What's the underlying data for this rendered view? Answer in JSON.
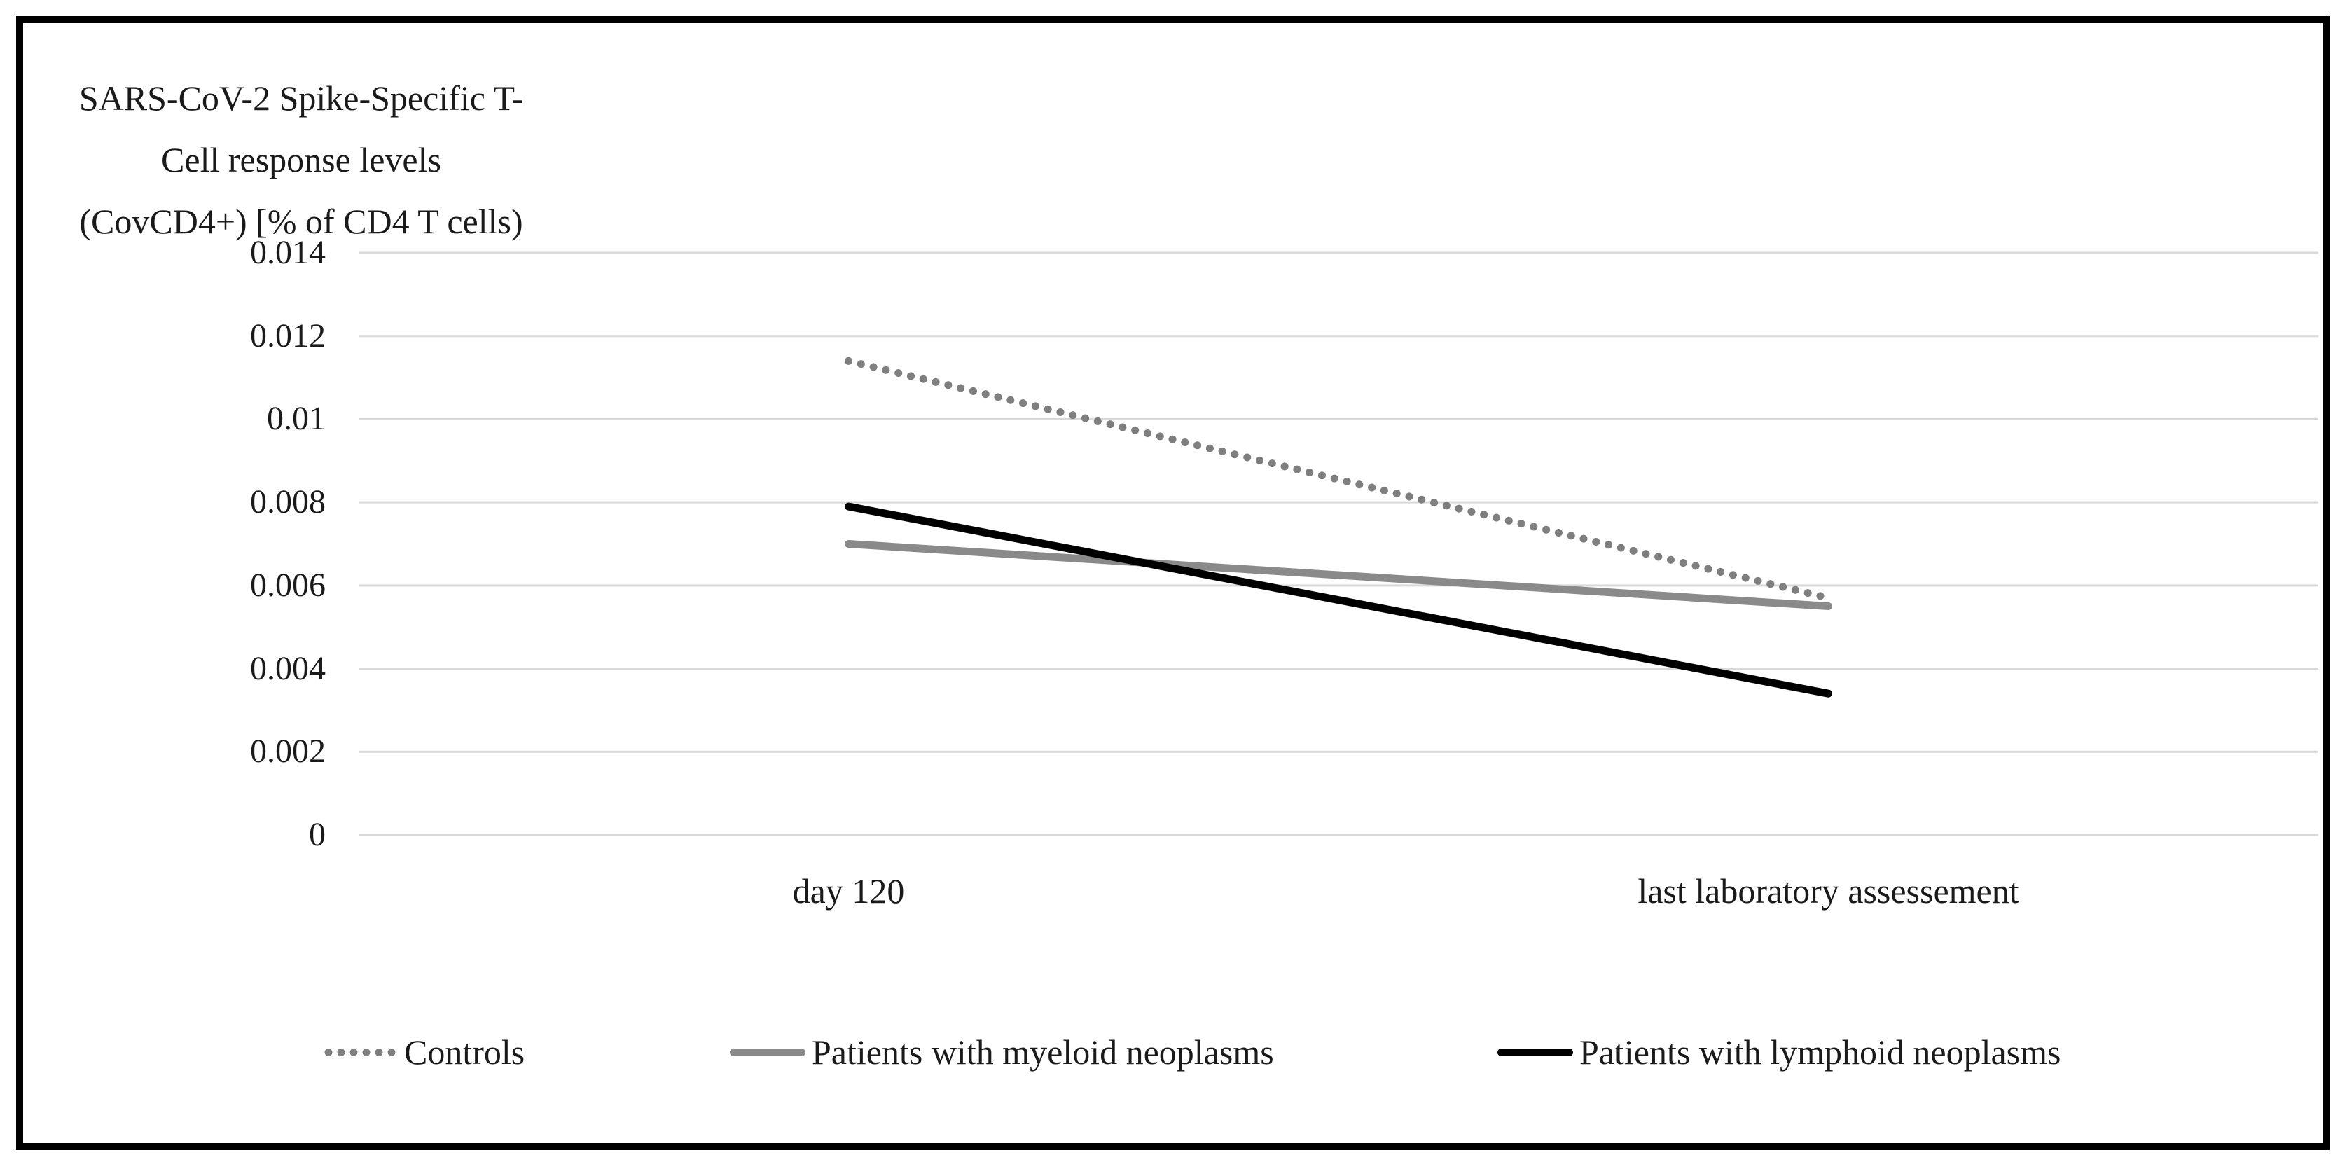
{
  "chart_data": {
    "type": "line",
    "categories": [
      "day 120",
      "last laboratory assessement"
    ],
    "series": [
      {
        "name": "Controls",
        "values": [
          0.0114,
          0.0057
        ],
        "color": "#7f7f7f",
        "line_style": "dotted"
      },
      {
        "name": "Patients with myeloid neoplasms",
        "values": [
          0.007,
          0.0055
        ],
        "color": "#8a8a8a",
        "line_style": "solid"
      },
      {
        "name": "Patients with lymphoid neoplasms",
        "values": [
          0.0079,
          0.0034
        ],
        "color": "#000000",
        "line_style": "solid"
      }
    ],
    "ylabel_lines": [
      "SARS-CoV-2 Spike-Specific T-",
      "Cell response levels",
      "(CovCD4+) [% of CD4 T cells)"
    ],
    "ylabel": "SARS-CoV-2 Spike-Specific T-Cell response levels (CovCD4+) [% of CD4 T cells)",
    "xlabel": "",
    "ylim": [
      0,
      0.014
    ],
    "ytick_step": 0.002,
    "ytick_labels": [
      "0.014",
      "0.012",
      "0.01",
      "0.008",
      "0.006",
      "0.004",
      "0.002",
      "0"
    ],
    "grid": true,
    "gridline_color": "#d9d9d9",
    "frame_color": "#000000",
    "legend_position": "bottom"
  }
}
